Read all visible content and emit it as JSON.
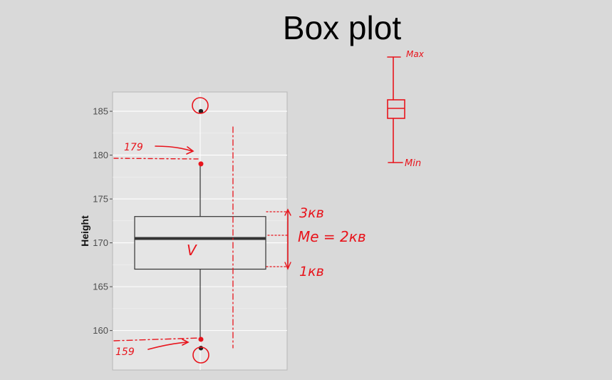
{
  "slide": {
    "title": "Box plot"
  },
  "chart_data": {
    "type": "box",
    "ylabel": "Height",
    "xlabel": "",
    "ylim": [
      155.5,
      187.2
    ],
    "yticks": [
      160,
      165,
      170,
      175,
      180,
      185
    ],
    "grid": true,
    "box": {
      "min": 159,
      "q1": 167,
      "median": 170.5,
      "q3": 173,
      "max": 179,
      "outliers": [
        158,
        185
      ]
    },
    "colors": {
      "ink": "#e8141c",
      "panel": "#e5e5e5",
      "box": "#333333",
      "background": "#d9d9d9"
    }
  },
  "annotations": {
    "max_value": "179",
    "min_value": "159",
    "q3_label": "3кв",
    "median_label": "Me = 2кв",
    "q1_label": "1кв",
    "median_mark": "V",
    "legend_max": "Max",
    "legend_min": "Min"
  }
}
